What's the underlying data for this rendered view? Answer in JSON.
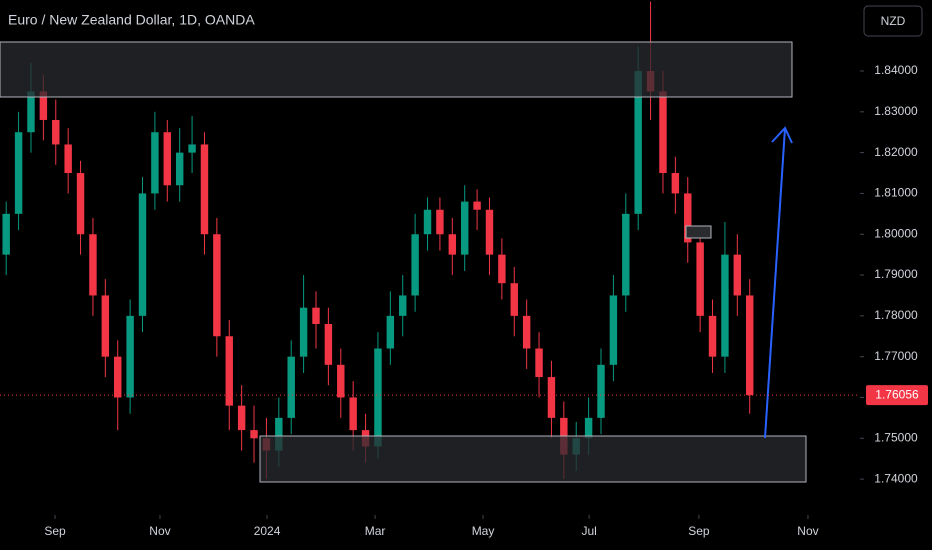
{
  "chart_data": {
    "type": "candlestick",
    "title": "Euro / New Zealand Dollar, 1D, OANDA",
    "currency": "NZD",
    "up_color": "#089981",
    "down_color": "#f23645",
    "x": [
      0,
      1,
      2,
      3,
      4,
      5,
      6,
      7,
      8,
      9,
      10,
      11,
      12,
      13,
      14,
      15,
      16,
      17,
      18,
      19,
      20,
      21,
      22,
      23,
      24,
      25,
      26,
      27,
      28,
      29,
      30,
      31,
      32,
      33,
      34,
      35,
      36,
      37,
      38,
      39,
      40,
      41,
      42,
      43,
      44,
      45,
      46,
      47,
      48,
      49,
      50,
      51,
      52,
      53,
      54,
      55,
      56,
      57,
      58,
      59,
      60
    ],
    "open": [
      1.795,
      1.805,
      1.825,
      1.835,
      1.828,
      1.822,
      1.815,
      1.8,
      1.785,
      1.77,
      1.76,
      1.78,
      1.81,
      1.825,
      1.812,
      1.82,
      1.822,
      1.8,
      1.775,
      1.758,
      1.752,
      1.75,
      1.747,
      1.755,
      1.77,
      1.782,
      1.778,
      1.768,
      1.76,
      1.752,
      1.748,
      1.772,
      1.78,
      1.785,
      1.8,
      1.806,
      1.8,
      1.795,
      1.808,
      1.806,
      1.795,
      1.788,
      1.78,
      1.772,
      1.765,
      1.755,
      1.746,
      1.75,
      1.755,
      1.768,
      1.785,
      1.805,
      1.84,
      1.835,
      1.815,
      1.81,
      1.798,
      1.78,
      1.77,
      1.795,
      1.785
    ],
    "high": [
      1.808,
      1.83,
      1.842,
      1.839,
      1.833,
      1.826,
      1.818,
      1.804,
      1.789,
      1.774,
      1.784,
      1.814,
      1.83,
      1.828,
      1.826,
      1.829,
      1.825,
      1.804,
      1.779,
      1.763,
      1.758,
      1.755,
      1.76,
      1.774,
      1.79,
      1.786,
      1.782,
      1.772,
      1.764,
      1.756,
      1.776,
      1.786,
      1.79,
      1.805,
      1.809,
      1.809,
      1.804,
      1.812,
      1.811,
      1.809,
      1.799,
      1.792,
      1.784,
      1.776,
      1.769,
      1.759,
      1.754,
      1.76,
      1.772,
      1.79,
      1.81,
      1.846,
      1.857,
      1.84,
      1.819,
      1.814,
      1.802,
      1.784,
      1.803,
      1.8,
      1.789
    ],
    "low": [
      1.79,
      1.801,
      1.82,
      1.823,
      1.817,
      1.81,
      1.795,
      1.78,
      1.765,
      1.752,
      1.756,
      1.776,
      1.806,
      1.808,
      1.808,
      1.815,
      1.795,
      1.77,
      1.752,
      1.747,
      1.744,
      1.74,
      1.743,
      1.751,
      1.766,
      1.772,
      1.763,
      1.755,
      1.747,
      1.744,
      1.745,
      1.768,
      1.775,
      1.781,
      1.796,
      1.796,
      1.79,
      1.791,
      1.801,
      1.79,
      1.784,
      1.775,
      1.767,
      1.76,
      1.75,
      1.74,
      1.742,
      1.746,
      1.751,
      1.764,
      1.781,
      1.801,
      1.828,
      1.81,
      1.805,
      1.793,
      1.776,
      1.766,
      1.766,
      1.78,
      1.756
    ],
    "close": [
      1.805,
      1.825,
      1.835,
      1.828,
      1.822,
      1.815,
      1.8,
      1.785,
      1.77,
      1.76,
      1.78,
      1.81,
      1.825,
      1.812,
      1.82,
      1.822,
      1.8,
      1.775,
      1.758,
      1.752,
      1.75,
      1.747,
      1.755,
      1.77,
      1.782,
      1.778,
      1.768,
      1.76,
      1.752,
      1.748,
      1.772,
      1.78,
      1.785,
      1.8,
      1.806,
      1.8,
      1.795,
      1.808,
      1.806,
      1.795,
      1.788,
      1.78,
      1.772,
      1.765,
      1.755,
      1.746,
      1.75,
      1.755,
      1.768,
      1.785,
      1.805,
      1.84,
      1.835,
      1.815,
      1.81,
      1.798,
      1.78,
      1.77,
      1.795,
      1.785,
      1.76056
    ],
    "xlim": [
      -0.5,
      68.9
    ],
    "xticks": [
      {
        "value": 3.94,
        "label": "Sep"
      },
      {
        "value": 12.41,
        "label": "Nov"
      },
      {
        "value": 21.05,
        "label": "2024"
      },
      {
        "value": 29.77,
        "label": "Mar"
      },
      {
        "value": 38.48,
        "label": "May"
      },
      {
        "value": 47.04,
        "label": "Jul"
      },
      {
        "value": 55.9,
        "label": "Sep"
      },
      {
        "value": 64.7,
        "label": "Nov"
      }
    ],
    "ylim": [
      1.7312,
      1.8574
    ],
    "yticks": [
      {
        "value": 1.74,
        "label": "1.74000"
      },
      {
        "value": 1.75,
        "label": "1.75000"
      },
      {
        "value": 1.76,
        "label": "1.76000"
      },
      {
        "value": 1.77,
        "label": "1.77000"
      },
      {
        "value": 1.78,
        "label": "1.78000"
      },
      {
        "value": 1.79,
        "label": "1.79000"
      },
      {
        "value": 1.8,
        "label": "1.80000"
      },
      {
        "value": 1.81,
        "label": "1.81000"
      },
      {
        "value": 1.82,
        "label": "1.82000"
      },
      {
        "value": 1.83,
        "label": "1.83000"
      },
      {
        "value": 1.84,
        "label": "1.84000"
      }
    ]
  }
}
